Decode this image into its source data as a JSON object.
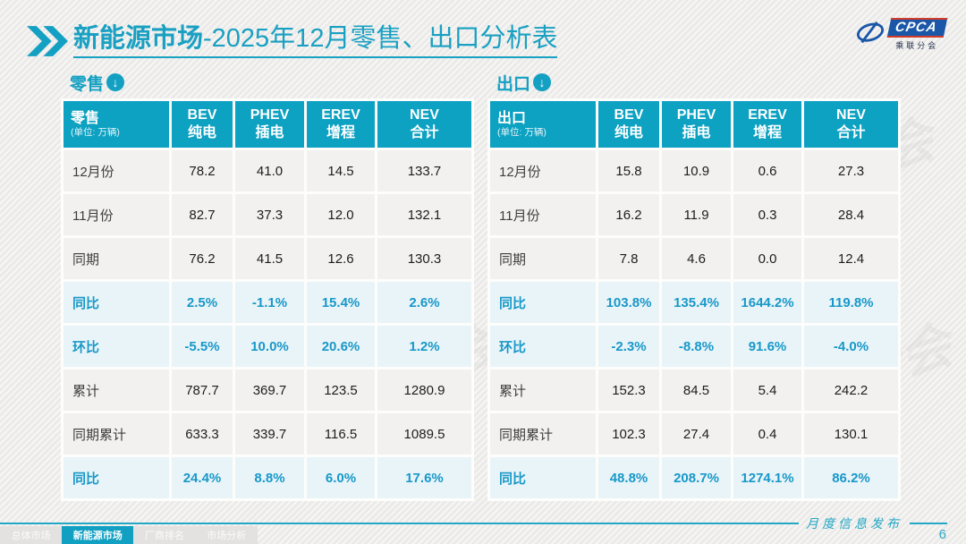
{
  "title": {
    "bold": "新能源市场",
    "rest": "-2025年12月零售、出口分析表"
  },
  "logo": {
    "name": "CPCA",
    "subtitle": "乘联分会"
  },
  "columns": [
    {
      "en": "BEV",
      "cn": "纯电"
    },
    {
      "en": "PHEV",
      "cn": "插电"
    },
    {
      "en": "EREV",
      "cn": "增程"
    },
    {
      "en": "NEV",
      "cn": "合计"
    }
  ],
  "tables": [
    {
      "section": "零售",
      "unit": "(单位: 万辆)",
      "rows": [
        {
          "label": "12月份",
          "values": [
            "78.2",
            "41.0",
            "14.5",
            "133.7"
          ],
          "pct": false
        },
        {
          "label": "11月份",
          "values": [
            "82.7",
            "37.3",
            "12.0",
            "132.1"
          ],
          "pct": false
        },
        {
          "label": "同期",
          "values": [
            "76.2",
            "41.5",
            "12.6",
            "130.3"
          ],
          "pct": false
        },
        {
          "label": "同比",
          "values": [
            "2.5%",
            "-1.1%",
            "15.4%",
            "2.6%"
          ],
          "pct": true
        },
        {
          "label": "环比",
          "values": [
            "-5.5%",
            "10.0%",
            "20.6%",
            "1.2%"
          ],
          "pct": true
        },
        {
          "label": "累计",
          "values": [
            "787.7",
            "369.7",
            "123.5",
            "1280.9"
          ],
          "pct": false
        },
        {
          "label": "同期累计",
          "values": [
            "633.3",
            "339.7",
            "116.5",
            "1089.5"
          ],
          "pct": false
        },
        {
          "label": "同比",
          "values": [
            "24.4%",
            "8.8%",
            "6.0%",
            "17.6%"
          ],
          "pct": true
        }
      ]
    },
    {
      "section": "出口",
      "unit": "(单位: 万辆)",
      "rows": [
        {
          "label": "12月份",
          "values": [
            "15.8",
            "10.9",
            "0.6",
            "27.3"
          ],
          "pct": false
        },
        {
          "label": "11月份",
          "values": [
            "16.2",
            "11.9",
            "0.3",
            "28.4"
          ],
          "pct": false
        },
        {
          "label": "同期",
          "values": [
            "7.8",
            "4.6",
            "0.0",
            "12.4"
          ],
          "pct": false
        },
        {
          "label": "同比",
          "values": [
            "103.8%",
            "135.4%",
            "1644.2%",
            "119.8%"
          ],
          "pct": true
        },
        {
          "label": "环比",
          "values": [
            "-2.3%",
            "-8.8%",
            "91.6%",
            "-4.0%"
          ],
          "pct": true
        },
        {
          "label": "累计",
          "values": [
            "152.3",
            "84.5",
            "5.4",
            "242.2"
          ],
          "pct": false
        },
        {
          "label": "同期累计",
          "values": [
            "102.3",
            "27.4",
            "0.4",
            "130.1"
          ],
          "pct": false
        },
        {
          "label": "同比",
          "values": [
            "48.8%",
            "208.7%",
            "1274.1%",
            "86.2%"
          ],
          "pct": true
        }
      ]
    }
  ],
  "footer": {
    "tabs": [
      {
        "label": "总体市场",
        "active": false
      },
      {
        "label": "新能源市场",
        "active": true
      },
      {
        "label": "厂商排名",
        "active": false
      },
      {
        "label": "市场分析",
        "active": false
      }
    ],
    "note": "月度信息发布",
    "page": "6"
  },
  "icons": {
    "section_arrow": "↓"
  },
  "watermark": "CPCA 乘联分会",
  "colors": {
    "teal": "#0da1c2",
    "pct_row_bg": "#e9f4f9",
    "pct_text": "#1898c8",
    "logo_blue": "#1b57a8",
    "logo_red": "#d23c2a"
  }
}
